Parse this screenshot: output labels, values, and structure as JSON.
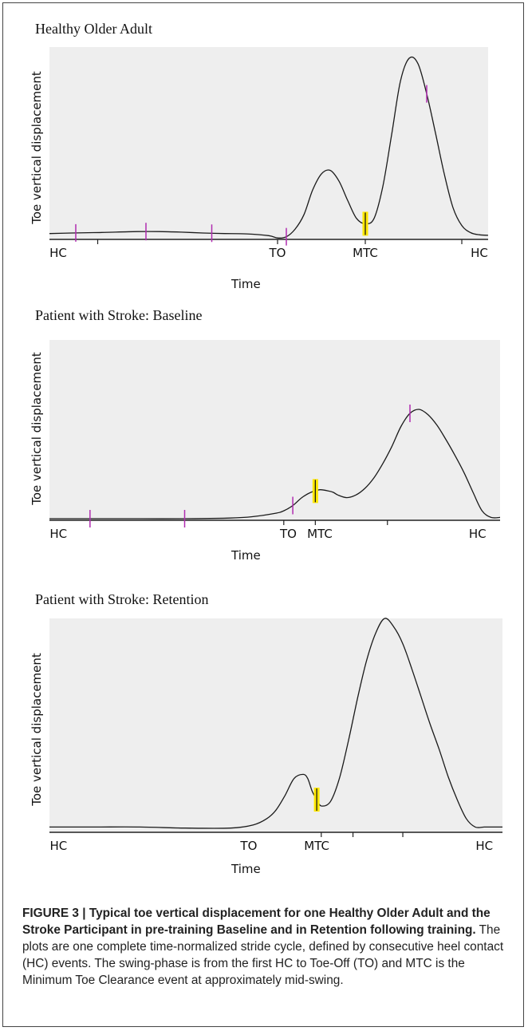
{
  "figure": {
    "caption_lead": "FIGURE 3 | Typical toe vertical displacement for one Healthy Older Adult and the Stroke Participant in pre-training Baseline and in Retention following training.",
    "caption_body": " The plots are one complete time-normalized stride cycle, defined by consecutive heel contact (HC) events. The swing-phase is from the first HC to Toe-Off (TO) and MTC is the Minimum Toe Clearance event at approximately mid-swing."
  },
  "colors": {
    "plot_background": "#eeeeee",
    "curve": "#1a1a1a",
    "event_marker": "#b02cb0",
    "mtc_highlight": "#ffe800"
  },
  "chart_data": [
    {
      "type": "line",
      "title": "Healthy Older Adult",
      "xlabel": "Time",
      "ylabel": "Toe vertical displacement",
      "xlim": [
        0,
        100
      ],
      "ylim": [
        0,
        100
      ],
      "x": [
        0,
        5,
        10,
        15,
        20,
        25,
        30,
        35,
        40,
        45,
        50,
        52,
        54,
        56,
        58,
        60,
        62,
        64,
        66,
        68,
        70,
        72,
        74,
        76,
        78,
        80,
        82,
        84,
        86,
        88,
        90,
        92,
        94,
        96,
        98,
        100
      ],
      "y": [
        1.5,
        1.8,
        2.0,
        2.3,
        2.6,
        2.6,
        2.3,
        1.8,
        1.5,
        1.3,
        0.3,
        -1.0,
        -0.3,
        4,
        12,
        26,
        35,
        37,
        31,
        20,
        10,
        7,
        10,
        28,
        57,
        87,
        100,
        97,
        80,
        58,
        35,
        16,
        6,
        2,
        0.8,
        0.5
      ],
      "tick_labels": [
        {
          "x": 2,
          "text": "HC"
        },
        {
          "x": 52,
          "text": "TO"
        },
        {
          "x": 72,
          "text": "MTC"
        },
        {
          "x": 98,
          "text": "HC"
        }
      ],
      "minor_ticks": [
        11,
        52,
        72,
        94
      ],
      "event_markers": [
        6,
        22,
        37,
        54,
        86
      ],
      "mtc_marker": 72
    },
    {
      "type": "line",
      "title": "Patient with Stroke: Baseline",
      "xlabel": "Time",
      "ylabel": "Toe vertical displacement",
      "xlim": [
        0,
        100
      ],
      "ylim": [
        0,
        100
      ],
      "x": [
        0,
        10,
        20,
        30,
        40,
        45,
        50,
        52,
        54,
        56,
        58,
        60,
        62,
        63,
        64,
        66,
        68,
        70,
        72,
        74,
        76,
        78,
        80,
        82,
        84,
        86,
        88,
        90,
        92,
        94,
        96,
        98,
        100
      ],
      "y": [
        0,
        0,
        0,
        0,
        0.5,
        1.5,
        4,
        6,
        10,
        16,
        20,
        22,
        21,
        20,
        18,
        16,
        18,
        23,
        31,
        42,
        55,
        70,
        80,
        83,
        79,
        71,
        60,
        48,
        35,
        20,
        6,
        1,
        1
      ],
      "tick_labels": [
        {
          "x": 2,
          "text": "HC"
        },
        {
          "x": 53,
          "text": "TO"
        },
        {
          "x": 60,
          "text": "MTC"
        },
        {
          "x": 95,
          "text": "HC"
        }
      ],
      "minor_ticks": [
        52,
        59,
        75
      ],
      "event_markers": [
        9,
        30,
        54,
        80
      ],
      "mtc_marker": 59
    },
    {
      "type": "line",
      "title": "Patient with Stroke: Retention",
      "xlabel": "Time",
      "ylabel": "Toe vertical displacement",
      "xlim": [
        0,
        100
      ],
      "ylim": [
        0,
        100
      ],
      "x": [
        0,
        10,
        20,
        30,
        40,
        45,
        48,
        50,
        52,
        54,
        56,
        57,
        58,
        59,
        60,
        62,
        64,
        66,
        68,
        70,
        72,
        74,
        76,
        78,
        80,
        82,
        84,
        86,
        88,
        90,
        92,
        94,
        96,
        98,
        100
      ],
      "y": [
        1,
        1,
        1,
        0.5,
        0.5,
        2,
        5,
        9,
        16,
        24,
        26,
        24,
        18,
        14,
        11,
        13,
        24,
        42,
        62,
        80,
        93,
        100,
        96,
        88,
        76,
        63,
        50,
        38,
        25,
        14,
        5,
        1,
        1,
        1,
        1
      ],
      "tick_labels": [
        {
          "x": 2,
          "text": "HC"
        },
        {
          "x": 44,
          "text": "TO"
        },
        {
          "x": 59,
          "text": "MTC"
        },
        {
          "x": 96,
          "text": "HC"
        }
      ],
      "minor_ticks": [
        60,
        67,
        78
      ],
      "event_markers": [],
      "mtc_marker": 59
    }
  ]
}
